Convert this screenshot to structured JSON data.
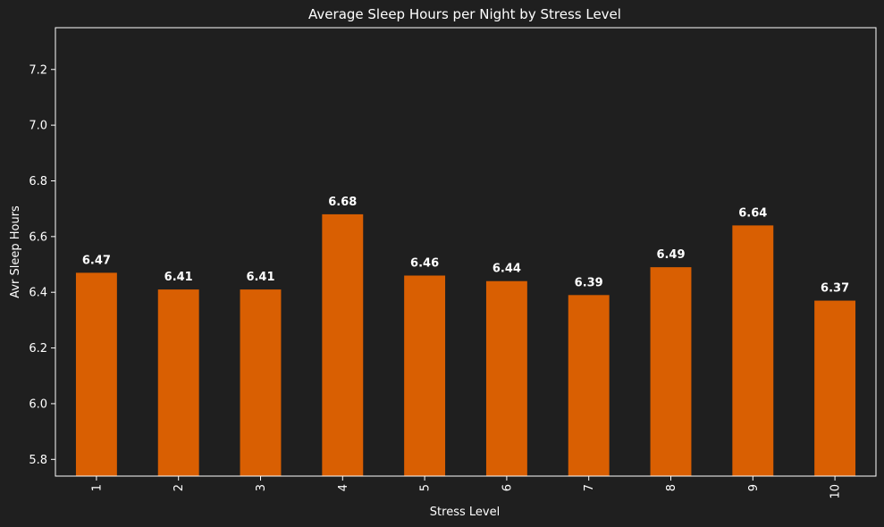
{
  "chart_data": {
    "type": "bar",
    "title": "Average Sleep Hours per Night by Stress Level",
    "xlabel": "Stress Level",
    "ylabel": "Avr Sleep Hours",
    "categories": [
      "1",
      "2",
      "3",
      "4",
      "5",
      "6",
      "7",
      "8",
      "9",
      "10"
    ],
    "values": [
      6.47,
      6.41,
      6.41,
      6.68,
      6.46,
      6.44,
      6.39,
      6.49,
      6.64,
      6.37
    ],
    "data_labels": [
      "6.47",
      "6.41",
      "6.41",
      "6.68",
      "6.46",
      "6.44",
      "6.39",
      "6.49",
      "6.64",
      "6.37"
    ],
    "ylim": [
      5.74,
      7.35
    ],
    "yticks": [
      5.8,
      6.0,
      6.2,
      6.4,
      6.6,
      6.8,
      7.0,
      7.2
    ],
    "ytick_labels": [
      "5.8",
      "6.0",
      "6.2",
      "6.4",
      "6.6",
      "6.8",
      "7.0",
      "7.2"
    ],
    "grid": false,
    "legend": "none",
    "colors": {
      "bar": "#d95f02",
      "background": "#1f1f1f",
      "text": "#ffffff",
      "axes": "#ffffff"
    }
  }
}
